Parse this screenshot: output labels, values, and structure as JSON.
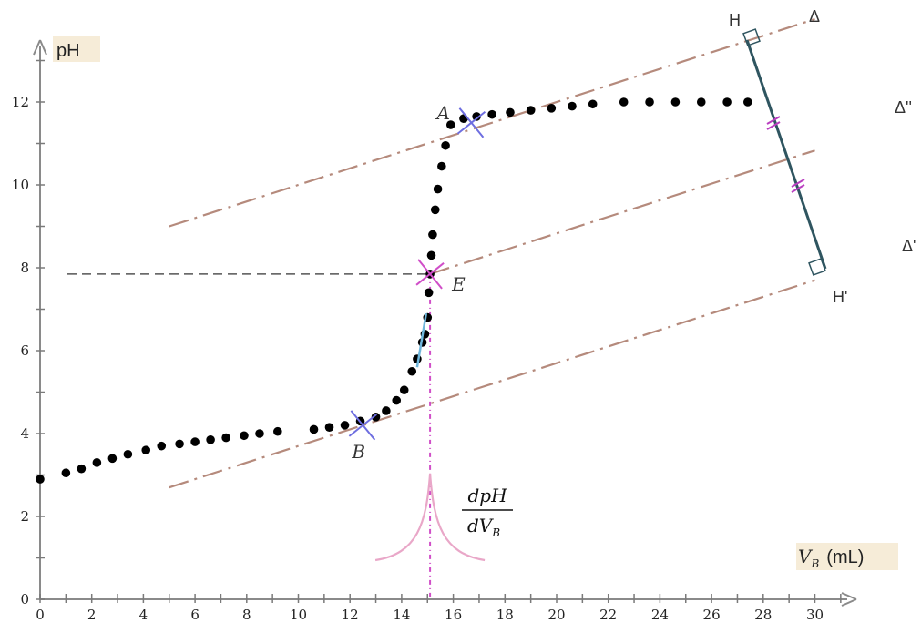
{
  "chart_data": {
    "type": "scatter",
    "xlabel": "(mL)",
    "xlabel_var": "V",
    "xlabel_sub": "B",
    "ylabel": "pH",
    "xlim": [
      0,
      31
    ],
    "ylim": [
      0,
      13
    ],
    "x_ticks": [
      0,
      2,
      4,
      6,
      8,
      10,
      12,
      14,
      16,
      18,
      20,
      22,
      24,
      26,
      28,
      30
    ],
    "y_ticks": [
      0,
      2,
      4,
      6,
      8,
      10,
      12
    ],
    "series": [
      {
        "x": [
          0,
          1,
          1.6,
          2.2,
          2.8,
          3.4,
          4.1,
          4.7,
          5.4,
          6.0,
          6.6,
          7.2,
          7.9,
          8.5,
          9.2,
          10.6,
          11.2,
          11.8,
          12.4,
          13.0,
          13.4,
          13.8,
          14.1,
          14.4,
          14.6,
          14.8,
          14.9,
          15.0,
          15.05,
          15.1,
          15.15,
          15.2,
          15.3,
          15.4,
          15.55,
          15.7,
          15.9,
          16.4,
          16.9,
          17.5,
          18.2,
          19.0,
          19.8,
          20.6,
          21.4,
          22.6,
          23.6,
          24.6,
          25.6,
          26.6,
          27.4
        ],
        "y": [
          2.9,
          3.05,
          3.15,
          3.3,
          3.4,
          3.5,
          3.6,
          3.7,
          3.75,
          3.8,
          3.85,
          3.9,
          3.95,
          4.0,
          4.05,
          4.1,
          4.15,
          4.2,
          4.3,
          4.4,
          4.55,
          4.8,
          5.05,
          5.5,
          5.8,
          6.2,
          6.4,
          6.8,
          7.4,
          7.85,
          8.3,
          8.8,
          9.4,
          9.9,
          10.45,
          10.95,
          11.45,
          11.6,
          11.65,
          11.7,
          11.75,
          11.8,
          11.85,
          11.9,
          11.95,
          12.0,
          12.0,
          12.0,
          12.0,
          12.0,
          12.0
        ]
      }
    ],
    "annotations": {
      "point_A": {
        "label": "A",
        "x": 16.7,
        "y": 11.5
      },
      "point_B": {
        "label": "B",
        "x": 12.5,
        "y": 4.2
      },
      "point_E": {
        "label": "E",
        "x": 15.1,
        "y": 7.85
      },
      "tangent_upper": {
        "label": "Δ",
        "x": [
          5,
          30
        ],
        "y": [
          9.0,
          14.0
        ]
      },
      "tangent_middle": {
        "label": "Δ''",
        "x": [
          15.1,
          30
        ],
        "y": [
          7.85,
          10.83
        ]
      },
      "tangent_lower": {
        "label": "Δ'",
        "x": [
          5,
          30
        ],
        "y": [
          2.7,
          7.7
        ]
      },
      "perpendicular_H": {
        "label": "H",
        "x": 27.5,
        "y": 13.6
      },
      "perpendicular_H_prime": {
        "label": "H'",
        "x": 30.0,
        "y": 7.8
      },
      "derivative_numerator": "dpH",
      "derivative_denominator_var": "dV",
      "derivative_denominator_sub": "B",
      "equivalence_pH": 7.85,
      "equivalence_volume": 15.1
    },
    "colors": {
      "data": "#000000",
      "tangent": "#b58a7c",
      "marker": "#6e6ee0",
      "marker_E": "#d04ec8",
      "derivative": "#e9a7c8",
      "hh_segment": "#2f5560",
      "guide": "#555555",
      "axis_label_bg": "#f6ecd8"
    }
  }
}
